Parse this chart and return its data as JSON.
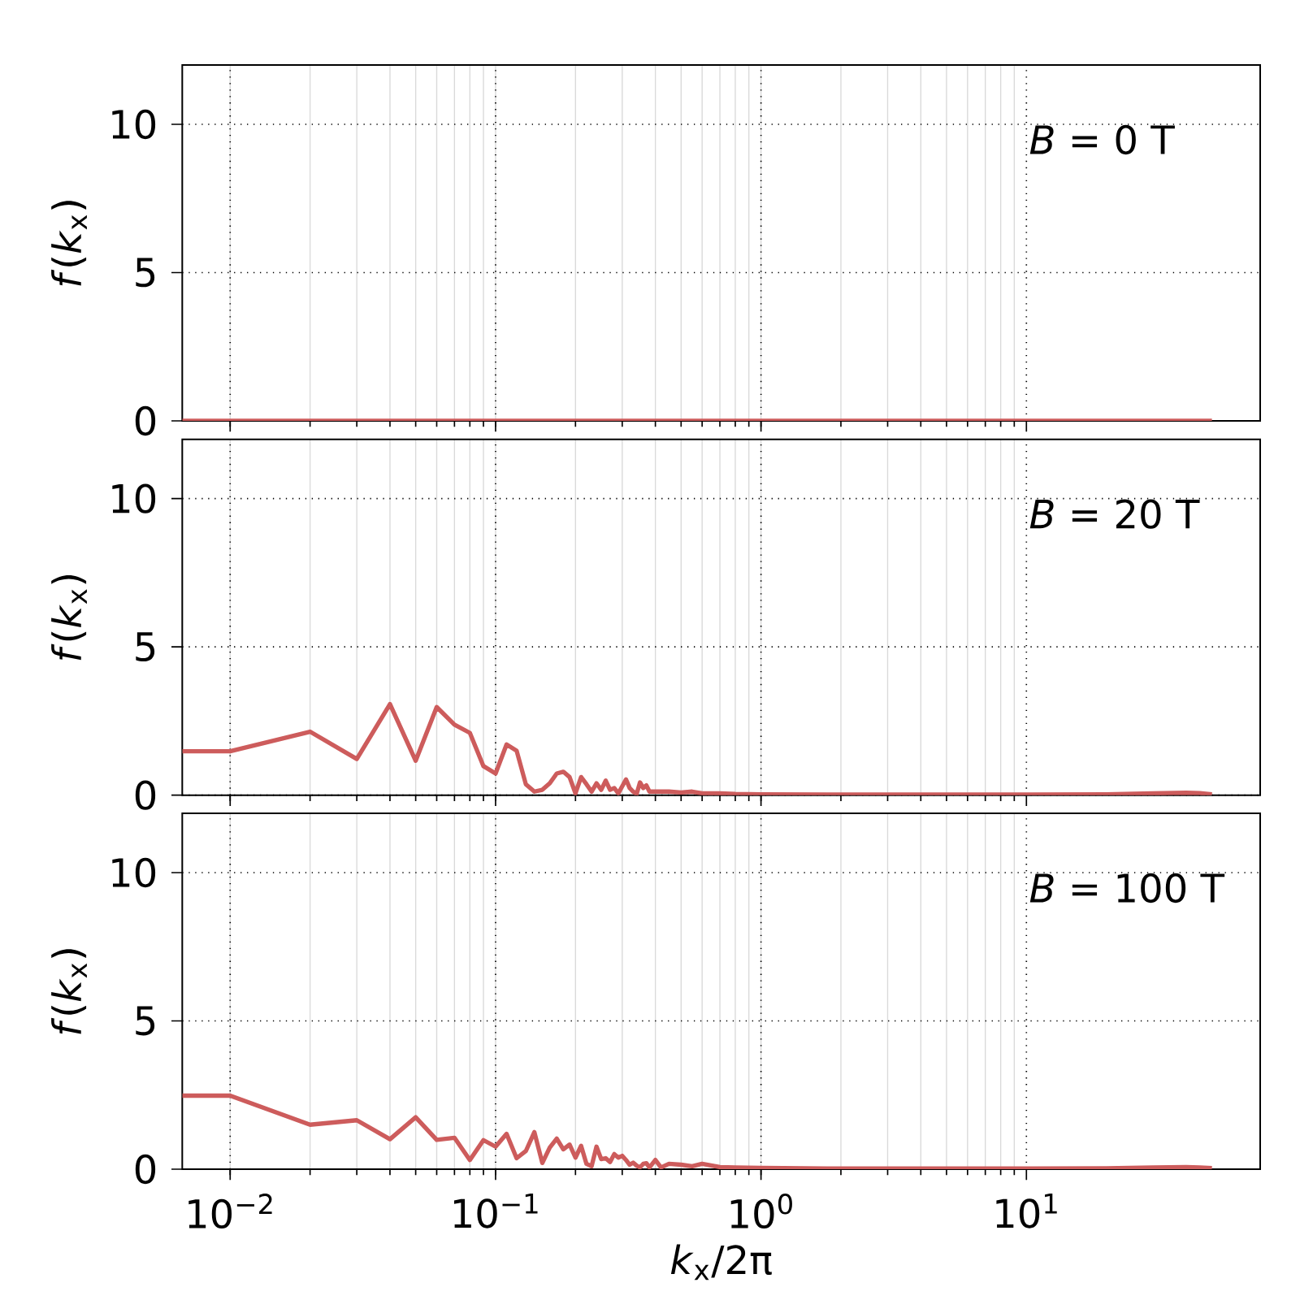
{
  "chart_data": [
    {
      "type": "line",
      "annotations": [
        "*B* = 0 T"
      ],
      "ylabel": "*f*(*k*$_{x}$)",
      "log": "x",
      "grid": true,
      "tick_labels": "y",
      "xlim": [
        0.0066,
        76
      ],
      "ylim": [
        0,
        12
      ],
      "yticks": [
        0,
        5,
        10
      ],
      "xticks": [
        {
          "value": 0.01,
          "label": null
        },
        {
          "value": 0.1,
          "label": null
        },
        {
          "value": 1,
          "label": null
        },
        {
          "value": 10,
          "label": null
        }
      ],
      "series": [
        {
          "color": "#cd5c5c",
          "x": [
            0.0066,
            0.01,
            0.1,
            1,
            10,
            50
          ],
          "values": [
            0,
            0,
            0,
            0,
            0,
            0
          ]
        }
      ]
    },
    {
      "type": "line",
      "annotations": [
        "*B* = 20 T"
      ],
      "ylabel": "*f*(*k*$_{x}$)",
      "log": "x",
      "grid": true,
      "tick_labels": "y",
      "xlim": [
        0.0066,
        76
      ],
      "ylim": [
        0,
        12
      ],
      "yticks": [
        0,
        5,
        10
      ],
      "xticks": [
        {
          "value": 0.01,
          "label": null
        },
        {
          "value": 0.1,
          "label": null
        },
        {
          "value": 1,
          "label": null
        },
        {
          "value": 10,
          "label": null
        }
      ],
      "series": [
        {
          "color": "#cd5c5c",
          "x": [
            0.0066,
            0.01,
            0.02,
            0.03,
            0.04,
            0.05,
            0.06,
            0.07,
            0.08,
            0.09,
            0.1,
            0.11,
            0.12,
            0.13,
            0.14,
            0.15,
            0.16,
            0.17,
            0.18,
            0.19,
            0.2,
            0.21,
            0.22,
            0.23,
            0.24,
            0.25,
            0.26,
            0.27,
            0.28,
            0.29,
            0.31,
            0.32,
            0.33,
            0.34,
            0.35,
            0.36,
            0.37,
            0.38,
            0.4,
            0.45,
            0.5,
            0.55,
            0.6,
            0.7,
            0.8,
            1,
            2,
            5,
            10,
            20,
            30,
            40,
            45,
            50
          ],
          "values": [
            1.48,
            1.48,
            2.14,
            1.22,
            3.07,
            1.16,
            2.97,
            2.38,
            2.1,
            0.98,
            0.73,
            1.71,
            1.5,
            0.37,
            0.12,
            0.18,
            0.4,
            0.73,
            0.79,
            0.61,
            0.06,
            0.61,
            0.37,
            0.12,
            0.4,
            0.18,
            0.49,
            0.18,
            0.24,
            0.06,
            0.53,
            0.24,
            0.12,
            0.04,
            0.43,
            0.24,
            0.33,
            0.12,
            0.12,
            0.12,
            0.09,
            0.12,
            0.06,
            0.06,
            0.04,
            0.03,
            0.02,
            0.02,
            0.02,
            0.03,
            0.06,
            0.08,
            0.07,
            0.03
          ]
        }
      ]
    },
    {
      "type": "line",
      "annotations": [
        "*B* = 100 T"
      ],
      "ylabel": "*f*(*k*$_{x}$)",
      "xlabel": "*k*$_{x}$/2π",
      "log": "x",
      "grid": true,
      "xlim": [
        0.0066,
        76
      ],
      "ylim": [
        0,
        12
      ],
      "yticks": [
        0,
        5,
        10
      ],
      "xticks": [
        {
          "value": 0.01,
          "label": "10$^{−2}$"
        },
        {
          "value": 0.1,
          "label": "10$^{−1}$"
        },
        {
          "value": 1,
          "label": "10$^{0}$"
        },
        {
          "value": 10,
          "label": "10$^{1}$"
        }
      ],
      "series": [
        {
          "color": "#cd5c5c",
          "x": [
            0.0066,
            0.01,
            0.02,
            0.03,
            0.04,
            0.05,
            0.06,
            0.07,
            0.08,
            0.09,
            0.1,
            0.11,
            0.12,
            0.13,
            0.14,
            0.15,
            0.16,
            0.17,
            0.18,
            0.19,
            0.2,
            0.21,
            0.22,
            0.23,
            0.24,
            0.25,
            0.26,
            0.27,
            0.28,
            0.29,
            0.3,
            0.31,
            0.32,
            0.33,
            0.34,
            0.35,
            0.36,
            0.37,
            0.38,
            0.4,
            0.42,
            0.45,
            0.5,
            0.55,
            0.6,
            0.7,
            0.8,
            1,
            2,
            5,
            10,
            20,
            30,
            40,
            45,
            50
          ],
          "values": [
            2.48,
            2.48,
            1.5,
            1.65,
            1.01,
            1.75,
            0.99,
            1.06,
            0.31,
            0.98,
            0.76,
            1.19,
            0.37,
            0.61,
            1.25,
            0.21,
            0.73,
            1.03,
            0.67,
            0.83,
            0.39,
            0.79,
            0.18,
            0.1,
            0.76,
            0.34,
            0.37,
            0.24,
            0.51,
            0.39,
            0.45,
            0.31,
            0.15,
            0.22,
            0.12,
            0.06,
            0.18,
            0.2,
            0.06,
            0.31,
            0.06,
            0.18,
            0.15,
            0.1,
            0.18,
            0.07,
            0.06,
            0.04,
            0.02,
            0.02,
            0.02,
            0.03,
            0.06,
            0.07,
            0.06,
            0.04
          ]
        }
      ]
    }
  ]
}
